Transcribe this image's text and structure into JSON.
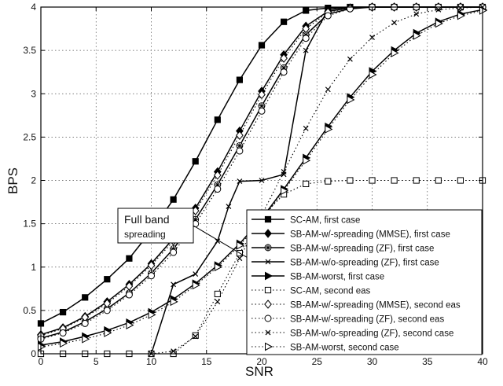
{
  "chart_data": {
    "type": "line",
    "xlabel": "SNR",
    "ylabel": "BPS",
    "xlim": [
      0,
      40
    ],
    "ylim": [
      0,
      4
    ],
    "xticks": [
      "0",
      "5",
      "10",
      "15",
      "20",
      "25",
      "30",
      "35",
      "40"
    ],
    "yticks": [
      "0",
      "0.5",
      "1",
      "1.5",
      "2",
      "2.5",
      "3",
      "3.5",
      "4"
    ],
    "grid": true,
    "legend_position": "bottom-right",
    "annotation": {
      "line1": "Full band",
      "line2": "spreading"
    },
    "series": [
      {
        "name": "SC-AM, first case",
        "style": "solid",
        "marker": "square-filled",
        "x": [
          0,
          2,
          4,
          6,
          8,
          10,
          12,
          14,
          16,
          18,
          20,
          22,
          24,
          26,
          28,
          30,
          32,
          34,
          36,
          38,
          40
        ],
        "y": [
          0.35,
          0.48,
          0.65,
          0.86,
          1.1,
          1.42,
          1.78,
          2.22,
          2.7,
          3.16,
          3.56,
          3.83,
          3.96,
          3.99,
          4,
          4,
          4,
          4,
          4,
          4,
          4
        ]
      },
      {
        "name": "SB-AM-w/-spreading (MMSE), first case",
        "style": "solid",
        "marker": "diamond-filled",
        "x": [
          0,
          2,
          4,
          6,
          8,
          10,
          12,
          14,
          16,
          18,
          20,
          22,
          24,
          26,
          28,
          30,
          32,
          34,
          36,
          38,
          40
        ],
        "y": [
          0.22,
          0.3,
          0.43,
          0.6,
          0.8,
          1.04,
          1.33,
          1.68,
          2.1,
          2.57,
          3.03,
          3.45,
          3.78,
          3.95,
          3.99,
          4,
          4,
          4,
          4,
          4,
          4
        ]
      },
      {
        "name": "SB-AM-w/-spreading (ZF), first case",
        "style": "solid",
        "marker": "circle-plus",
        "x": [
          0,
          2,
          4,
          6,
          8,
          10,
          12,
          14,
          16,
          18,
          20,
          22,
          24,
          26,
          28,
          30,
          32,
          34,
          36,
          38,
          40
        ],
        "y": [
          0.18,
          0.25,
          0.37,
          0.52,
          0.7,
          0.93,
          1.21,
          1.55,
          1.95,
          2.4,
          2.86,
          3.3,
          3.68,
          3.92,
          3.98,
          4,
          4,
          4,
          4,
          4,
          4
        ]
      },
      {
        "name": "SB-AM-w/o-spreading (ZF), first case",
        "style": "solid",
        "marker": "x",
        "x": [
          10,
          12,
          14,
          16,
          17,
          18,
          20,
          22,
          24,
          26,
          28,
          30,
          32,
          34,
          36,
          38,
          40
        ],
        "y": [
          0,
          0.8,
          0.92,
          1.3,
          1.7,
          1.99,
          2.0,
          2.07,
          3.5,
          3.97,
          4,
          4,
          4,
          4,
          4,
          4,
          4
        ]
      },
      {
        "name": "SB-AM-worst, first case",
        "style": "solid",
        "marker": "triangle-right-filled",
        "x": [
          0,
          2,
          4,
          6,
          8,
          10,
          12,
          14,
          16,
          18,
          20,
          22,
          24,
          26,
          28,
          30,
          32,
          34,
          36,
          38,
          40
        ],
        "y": [
          0.1,
          0.14,
          0.2,
          0.27,
          0.36,
          0.48,
          0.63,
          0.81,
          1.02,
          1.27,
          1.56,
          1.9,
          2.26,
          2.62,
          2.96,
          3.26,
          3.5,
          3.7,
          3.83,
          3.92,
          3.97
        ]
      },
      {
        "name": "SC-AM, second eas",
        "style": "dotted",
        "marker": "square-open",
        "x": [
          0,
          2,
          4,
          6,
          8,
          10,
          12,
          14,
          16,
          18,
          20,
          22,
          24,
          26,
          28,
          30,
          32,
          34,
          36,
          38,
          40
        ],
        "y": [
          0,
          0,
          0,
          0,
          0,
          0,
          0,
          0.21,
          0.69,
          1.16,
          1.58,
          1.84,
          1.96,
          1.99,
          2,
          2,
          2,
          2,
          2,
          2,
          2
        ]
      },
      {
        "name": "SB-AM-w/-spreading (MMSE), second eas",
        "style": "dotted",
        "marker": "diamond-open",
        "x": [
          0,
          2,
          4,
          6,
          8,
          10,
          12,
          14,
          16,
          18,
          20,
          22,
          24,
          26,
          28,
          30,
          32,
          34,
          36,
          38,
          40
        ],
        "y": [
          0.21,
          0.29,
          0.42,
          0.58,
          0.78,
          1.02,
          1.3,
          1.65,
          2.06,
          2.52,
          2.99,
          3.41,
          3.75,
          3.94,
          3.99,
          4,
          4,
          4,
          4,
          4,
          4
        ]
      },
      {
        "name": "SB-AM-w/-spreading (ZF), second eas",
        "style": "dotted",
        "marker": "circle-open",
        "x": [
          0,
          2,
          4,
          6,
          8,
          10,
          12,
          14,
          16,
          18,
          20,
          22,
          24,
          26,
          28,
          30,
          32,
          34,
          36,
          38,
          40
        ],
        "y": [
          0.17,
          0.24,
          0.35,
          0.5,
          0.68,
          0.9,
          1.17,
          1.5,
          1.9,
          2.34,
          2.8,
          3.25,
          3.64,
          3.9,
          3.98,
          4,
          4,
          4,
          4,
          4,
          4
        ]
      },
      {
        "name": "SB-AM-w/o-spreading (ZF), second case",
        "style": "dotted",
        "marker": "x",
        "x": [
          10,
          12,
          14,
          16,
          18,
          20,
          22,
          24,
          26,
          28,
          30,
          32,
          34,
          36,
          38,
          40
        ],
        "y": [
          0,
          0.03,
          0.2,
          0.6,
          1.1,
          1.6,
          2.1,
          2.6,
          3.05,
          3.4,
          3.65,
          3.82,
          3.92,
          3.97,
          3.99,
          4
        ]
      },
      {
        "name": "SB-AM-worst, second case",
        "style": "dotted",
        "marker": "triangle-right-open",
        "x": [
          0,
          2,
          4,
          6,
          8,
          10,
          12,
          14,
          16,
          18,
          20,
          22,
          24,
          26,
          28,
          30,
          32,
          34,
          36,
          38,
          40
        ],
        "y": [
          0.08,
          0.12,
          0.17,
          0.24,
          0.33,
          0.45,
          0.6,
          0.79,
          1.0,
          1.25,
          1.54,
          1.88,
          2.23,
          2.59,
          2.93,
          3.22,
          3.47,
          3.67,
          3.81,
          3.9,
          3.96
        ]
      }
    ]
  }
}
